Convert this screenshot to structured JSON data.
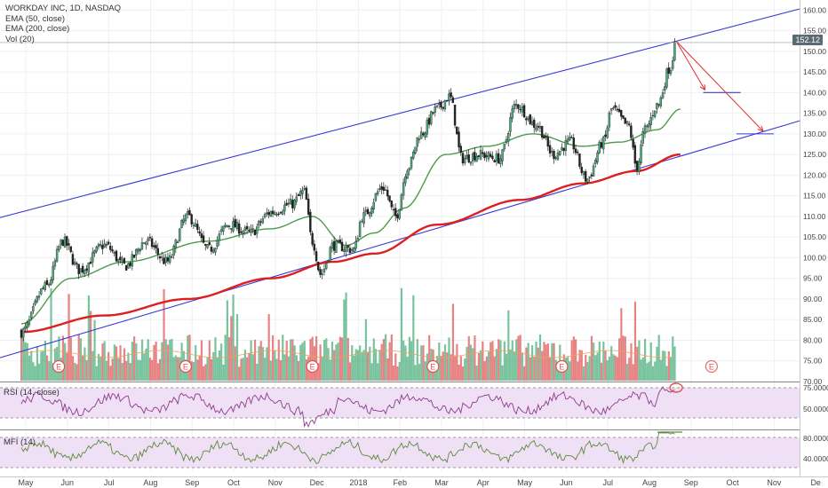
{
  "header": {
    "symbol_line": "WORKDAY INC, 1D, NASDAQ",
    "indicators": [
      "EMA (50, close)",
      "EMA (200, close)",
      "Vol (20)"
    ]
  },
  "last_price": "152.12",
  "panes": {
    "rsi_label": "RSI (14, close)",
    "mfi_label": "MFI (14)"
  },
  "colors": {
    "up": "#4caf7d",
    "down": "#e05a5a",
    "ema50": "#4c9a4c",
    "ema200": "#dd1f1f",
    "channel": "#3a3ad6",
    "arrow": "#e03030",
    "osc_line": "#8e3a8e",
    "osc_fill": "#efe0f5",
    "mfi_line": "#5c8a3c"
  },
  "chart_data": {
    "type": "candlestick",
    "title": "WORKDAY INC, 1D, NASDAQ",
    "x_labels": [
      "May",
      "Jun",
      "Jul",
      "Aug",
      "Sep",
      "Oct",
      "Nov",
      "Dec",
      "2018",
      "Feb",
      "Mar",
      "Apr",
      "May",
      "Jun",
      "Jul",
      "Aug",
      "Sep",
      "Oct",
      "Nov",
      "De"
    ],
    "price_axis": {
      "ticks": [
        70,
        75,
        80,
        85,
        90,
        95,
        100,
        105,
        110,
        115,
        120,
        125,
        130,
        135,
        140,
        145,
        150,
        155,
        160
      ],
      "range": [
        70,
        162
      ]
    },
    "rsi_axis": {
      "ticks": [
        "75.0000",
        "50.0000"
      ],
      "range": [
        20,
        82
      ]
    },
    "mfi_axis": {
      "ticks": [
        "80.0000",
        "40.0000"
      ],
      "range": [
        0,
        100
      ]
    },
    "price_keypoints": [
      {
        "m": 0,
        "c": 82
      },
      {
        "m": 0.6,
        "c": 93
      },
      {
        "m": 1.0,
        "c": 104
      },
      {
        "m": 1.4,
        "c": 97
      },
      {
        "m": 2.0,
        "c": 103
      },
      {
        "m": 2.5,
        "c": 98
      },
      {
        "m": 3.0,
        "c": 104
      },
      {
        "m": 3.5,
        "c": 99
      },
      {
        "m": 4.0,
        "c": 110
      },
      {
        "m": 4.5,
        "c": 102
      },
      {
        "m": 5.0,
        "c": 108
      },
      {
        "m": 5.5,
        "c": 106
      },
      {
        "m": 6.0,
        "c": 111
      },
      {
        "m": 6.5,
        "c": 113
      },
      {
        "m": 6.8,
        "c": 116
      },
      {
        "m": 7.0,
        "c": 104
      },
      {
        "m": 7.2,
        "c": 96
      },
      {
        "m": 7.5,
        "c": 103
      },
      {
        "m": 8.0,
        "c": 102
      },
      {
        "m": 8.2,
        "c": 110
      },
      {
        "m": 8.7,
        "c": 117
      },
      {
        "m": 9.0,
        "c": 110
      },
      {
        "m": 9.3,
        "c": 122
      },
      {
        "m": 9.6,
        "c": 130
      },
      {
        "m": 10.0,
        "c": 136
      },
      {
        "m": 10.3,
        "c": 139
      },
      {
        "m": 10.6,
        "c": 124
      },
      {
        "m": 11.0,
        "c": 125
      },
      {
        "m": 11.5,
        "c": 124
      },
      {
        "m": 11.9,
        "c": 137
      },
      {
        "m": 12.4,
        "c": 132
      },
      {
        "m": 12.8,
        "c": 125
      },
      {
        "m": 13.2,
        "c": 128
      },
      {
        "m": 13.6,
        "c": 119
      },
      {
        "m": 14.0,
        "c": 128
      },
      {
        "m": 14.2,
        "c": 136
      },
      {
        "m": 14.6,
        "c": 132
      },
      {
        "m": 14.8,
        "c": 122
      },
      {
        "m": 15.0,
        "c": 131
      },
      {
        "m": 15.3,
        "c": 137
      },
      {
        "m": 15.6,
        "c": 146
      },
      {
        "m": 15.75,
        "c": 152.12
      }
    ],
    "ema50_keypoints": [
      {
        "m": 0,
        "c": 84
      },
      {
        "m": 1.2,
        "c": 95
      },
      {
        "m": 2.5,
        "c": 99
      },
      {
        "m": 4.5,
        "c": 104
      },
      {
        "m": 6.0,
        "c": 107
      },
      {
        "m": 7.0,
        "c": 110
      },
      {
        "m": 7.8,
        "c": 103
      },
      {
        "m": 8.5,
        "c": 106
      },
      {
        "m": 9.2,
        "c": 112
      },
      {
        "m": 10.2,
        "c": 125
      },
      {
        "m": 11.2,
        "c": 127
      },
      {
        "m": 12.3,
        "c": 130
      },
      {
        "m": 13.5,
        "c": 127
      },
      {
        "m": 14.4,
        "c": 128
      },
      {
        "m": 15.3,
        "c": 131
      },
      {
        "m": 15.85,
        "c": 136
      }
    ],
    "ema200_keypoints": [
      {
        "m": 0,
        "c": 82
      },
      {
        "m": 2.0,
        "c": 86
      },
      {
        "m": 4.0,
        "c": 90
      },
      {
        "m": 6.0,
        "c": 95
      },
      {
        "m": 7.5,
        "c": 99
      },
      {
        "m": 8.5,
        "c": 101
      },
      {
        "m": 10.0,
        "c": 108
      },
      {
        "m": 12.0,
        "c": 114
      },
      {
        "m": 13.5,
        "c": 118
      },
      {
        "m": 14.8,
        "c": 121
      },
      {
        "m": 15.85,
        "c": 125
      }
    ],
    "channel": {
      "upper": [
        {
          "m": -0.6,
          "c": 109.5
        },
        {
          "m": 19.0,
          "c": 161
        }
      ],
      "lower": [
        {
          "m": -0.6,
          "c": 75.5
        },
        {
          "m": 19.0,
          "c": 134
        }
      ]
    },
    "targets": [
      {
        "m1": 16.4,
        "m2": 17.3,
        "c": 140
      },
      {
        "m1": 17.2,
        "m2": 18.1,
        "c": 130
      }
    ],
    "earnings_markers": [
      {
        "m": 0.9,
        "label": "E"
      },
      {
        "m": 3.95,
        "label": "E"
      },
      {
        "m": 7.0,
        "label": "E"
      },
      {
        "m": 9.9,
        "label": "E"
      },
      {
        "m": 13.0,
        "label": "E"
      },
      {
        "m": 16.6,
        "label": "E"
      }
    ]
  }
}
